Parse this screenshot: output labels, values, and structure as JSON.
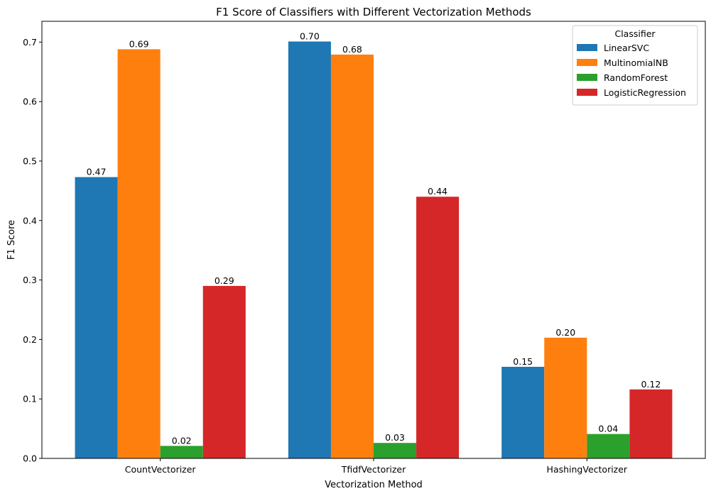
{
  "chart_data": {
    "type": "bar",
    "title": "F1 Score of Classifiers with Different Vectorization Methods",
    "xlabel": "Vectorization Method",
    "ylabel": "F1 Score",
    "categories": [
      "CountVectorizer",
      "TfidfVectorizer",
      "HashingVectorizer"
    ],
    "ylim": [
      0,
      0.735
    ],
    "yticks": [
      0.0,
      0.1,
      0.2,
      0.3,
      0.4,
      0.5,
      0.6,
      0.7
    ],
    "ytick_labels": [
      "0.0",
      "0.1",
      "0.2",
      "0.3",
      "0.4",
      "0.5",
      "0.6",
      "0.7"
    ],
    "grid": false,
    "legend": {
      "title": "Classifier",
      "placement": "top-right"
    },
    "series": [
      {
        "name": "LinearSVC",
        "color": "#1f77b4",
        "values": [
          0.473,
          0.701,
          0.154
        ],
        "labels": [
          "0.47",
          "0.70",
          "0.15"
        ]
      },
      {
        "name": "MultinomialNB",
        "color": "#ff7f0e",
        "values": [
          0.688,
          0.679,
          0.203
        ],
        "labels": [
          "0.69",
          "0.68",
          "0.20"
        ]
      },
      {
        "name": "RandomForest",
        "color": "#2ca02c",
        "values": [
          0.021,
          0.026,
          0.041
        ],
        "labels": [
          "0.02",
          "0.03",
          "0.04"
        ]
      },
      {
        "name": "LogisticRegression",
        "color": "#d62728",
        "values": [
          0.29,
          0.44,
          0.116
        ],
        "labels": [
          "0.29",
          "0.44",
          "0.12"
        ]
      }
    ]
  }
}
